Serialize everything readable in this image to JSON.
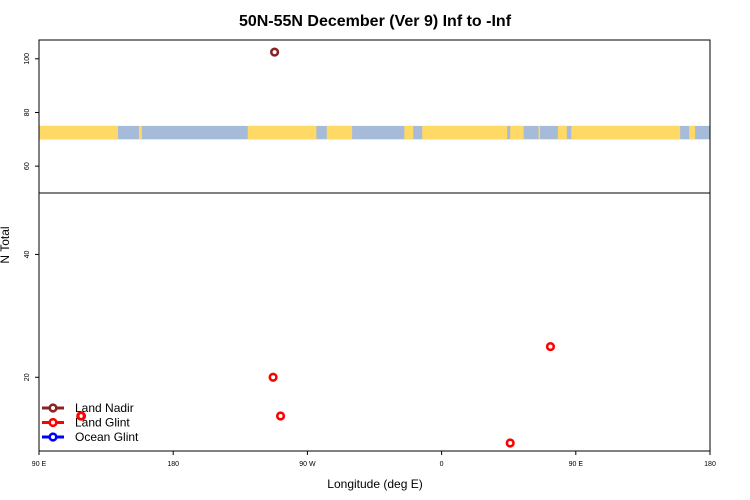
{
  "chart_data": {
    "type": "scatter",
    "title": "50N-55N December (Ver 9)   Inf to -Inf",
    "xlabel": "Longitude (deg E)",
    "ylabel": "N Total",
    "x_ticks": [
      {
        "lon": 90,
        "label": "90 E"
      },
      {
        "lon": 180,
        "label": "180"
      },
      {
        "lon": -90,
        "label": "90 W"
      },
      {
        "lon": 0,
        "label": "0"
      },
      {
        "lon": 90.001,
        "label": "90 E"
      },
      {
        "lon": 180.001,
        "label": "180"
      }
    ],
    "xlim": [
      90,
      540
    ],
    "lower_panel": {
      "ylim": [
        8,
        50
      ],
      "y_ticks": [
        {
          "value": 20,
          "label": "20"
        },
        {
          "value": 40,
          "label": "40"
        }
      ]
    },
    "upper_panel": {
      "ylim": [
        50,
        107
      ],
      "y_ticks": [
        {
          "value": 60,
          "label": "60"
        },
        {
          "value": 80,
          "label": "80"
        },
        {
          "value": 100,
          "label": "100"
        }
      ]
    },
    "land_mask_band": {
      "y_range": [
        70,
        75
      ],
      "land_color": "#FFD966",
      "ocean_color": "#A6BADA",
      "land_segments_lon": [
        [
          90,
          143
        ],
        [
          157,
          159
        ],
        [
          230,
          276
        ],
        [
          283,
          300
        ],
        [
          335,
          341
        ],
        [
          347,
          404
        ],
        [
          406,
          415
        ],
        [
          425,
          426
        ],
        [
          438,
          444
        ],
        [
          447,
          520
        ],
        [
          526,
          530
        ]
      ]
    },
    "series": [
      {
        "name": "Land Nadir",
        "color": "#8B2323",
        "points": [
          {
            "lon": -112,
            "value": 102.5
          }
        ]
      },
      {
        "name": "Land Glint",
        "color": "#FF0000",
        "points": [
          {
            "lon": 118,
            "value": 13.7
          },
          {
            "lon": -113,
            "value": 20
          },
          {
            "lon": -108,
            "value": 13.7
          },
          {
            "lon": 46,
            "value": 9.3
          },
          {
            "lon": 73,
            "value": 25
          },
          {
            "lon": 118.5,
            "value": 13.7
          }
        ]
      },
      {
        "name": "Ocean Glint",
        "color": "#0000FF",
        "points": []
      }
    ],
    "legend": {
      "placement": "bottom-left",
      "entries": [
        {
          "label": "Land Nadir",
          "color": "#8B2323"
        },
        {
          "label": "Land Glint",
          "color": "#FF0000"
        },
        {
          "label": "Ocean Glint",
          "color": "#0000FF"
        }
      ]
    }
  }
}
